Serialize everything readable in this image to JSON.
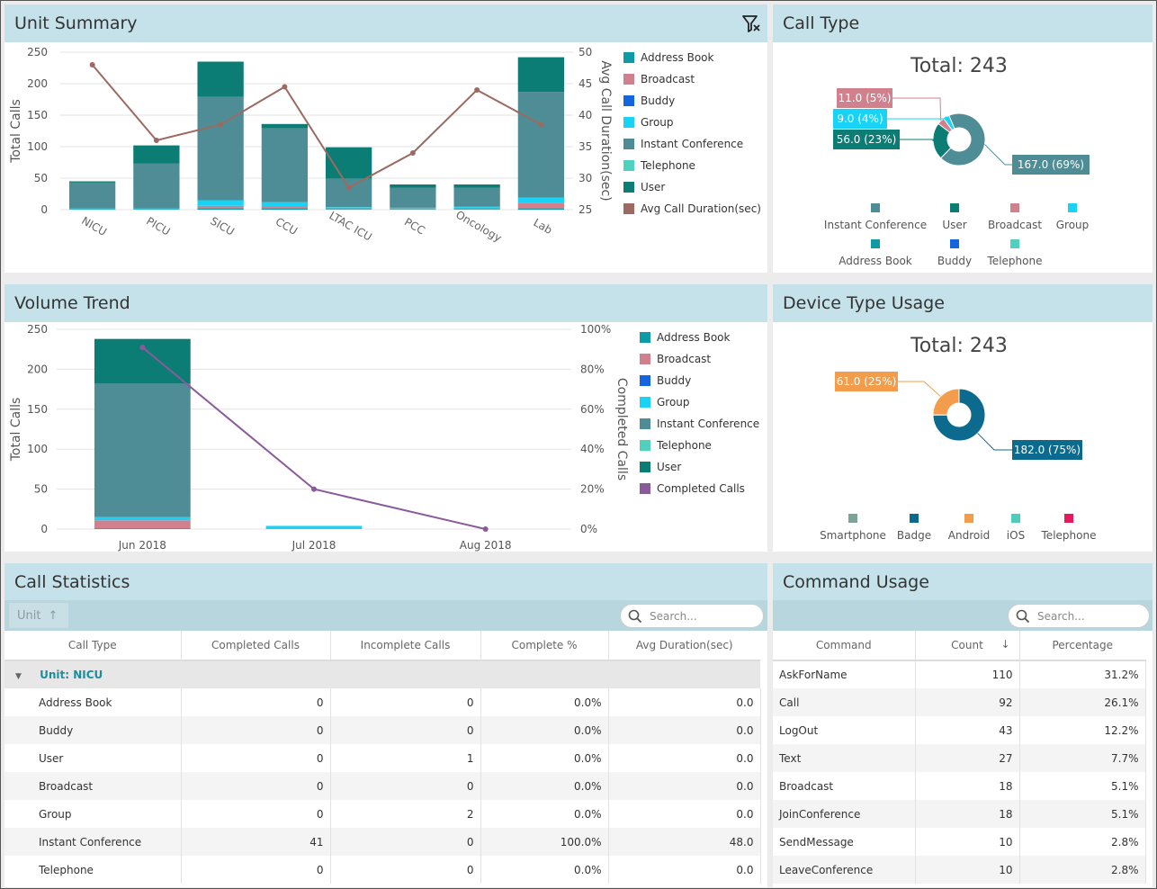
{
  "panels": {
    "unit_summary": "Unit Summary",
    "call_type": "Call Type",
    "volume_trend": "Volume Trend",
    "device_type": "Device Type Usage",
    "call_statistics": "Call Statistics",
    "command_usage": "Command Usage"
  },
  "colors": {
    "address_book": "#0f9aa8",
    "broadcast": "#d1808d",
    "buddy": "#1565e0",
    "group": "#18d3f6",
    "instant_conference": "#4f8d96",
    "telephone": "#4fd1bd",
    "user": "#0c7d75",
    "avg_line": "#9b6a63",
    "completed_line": "#8a5b9a",
    "smartphone": "#7da397",
    "badge": "#0b6a8e",
    "android": "#f39c4b",
    "ios": "#4fcdbb",
    "device_telephone": "#e8195a",
    "header": "#c5e2ea"
  },
  "chart_data": [
    {
      "type": "bar",
      "title": "Unit Summary",
      "ylabel": "Total Calls",
      "y2label": "Avg Call Duration(sec)",
      "ylim": [
        0,
        250
      ],
      "y2lim": [
        25,
        50
      ],
      "yticks": [
        "250",
        "200",
        "150",
        "100",
        "50",
        "0"
      ],
      "y2ticks": [
        "50",
        "45",
        "40",
        "35",
        "30",
        "25"
      ],
      "categories": [
        "NICU",
        "PICU",
        "SICU",
        "CCU",
        "LTAC ICU",
        "PCC",
        "Oncology",
        "Lab"
      ],
      "series": [
        {
          "name": "Address Book",
          "key": "address_book",
          "values": [
            1,
            1,
            2,
            2,
            1,
            1,
            1,
            2
          ]
        },
        {
          "name": "Broadcast",
          "key": "broadcast",
          "values": [
            0,
            0,
            4,
            3,
            2,
            1,
            2,
            9
          ]
        },
        {
          "name": "Buddy",
          "key": "buddy",
          "values": [
            0,
            0,
            0,
            0,
            0,
            0,
            0,
            0
          ]
        },
        {
          "name": "Group",
          "key": "group",
          "values": [
            1,
            1,
            9,
            7,
            1,
            1,
            2,
            8
          ]
        },
        {
          "name": "Instant Conference",
          "key": "instant_conference",
          "values": [
            41,
            71,
            164,
            117,
            45,
            32,
            30,
            168
          ]
        },
        {
          "name": "Telephone",
          "key": "telephone",
          "values": [
            0,
            0,
            0,
            0,
            0,
            0,
            0,
            0
          ]
        },
        {
          "name": "User",
          "key": "user",
          "values": [
            2,
            29,
            56,
            7,
            50,
            5,
            5,
            55
          ]
        }
      ],
      "line": {
        "name": "Avg Call Duration(sec)",
        "key": "avg_line",
        "values": [
          48,
          36,
          38.5,
          44.5,
          28.5,
          34,
          44,
          38.5
        ]
      }
    },
    {
      "type": "pie",
      "title": "Call Type",
      "total_label": "Total: 243",
      "slices": [
        {
          "name": "Instant Conference",
          "key": "instant_conference",
          "value": 167.0,
          "label": "167.0 (69%)"
        },
        {
          "name": "User",
          "key": "user",
          "value": 56.0,
          "label": "56.0 (23%)"
        },
        {
          "name": "Broadcast",
          "key": "broadcast",
          "value": 11.0,
          "label": "11.0 (5%)"
        },
        {
          "name": "Group",
          "key": "group",
          "value": 9.0,
          "label": "9.0 (4%)"
        },
        {
          "name": "Address Book",
          "key": "address_book",
          "value": 0
        },
        {
          "name": "Buddy",
          "key": "buddy",
          "value": 0
        },
        {
          "name": "Telephone",
          "key": "telephone",
          "value": 0
        }
      ]
    },
    {
      "type": "bar",
      "title": "Volume Trend",
      "ylabel": "Total Calls",
      "y2label": "Completed Calls",
      "ylim": [
        0,
        250
      ],
      "y2lim": [
        0,
        100
      ],
      "yticks": [
        "250",
        "200",
        "150",
        "100",
        "50",
        "0"
      ],
      "y2ticks": [
        "100%",
        "80%",
        "60%",
        "40%",
        "20%",
        "0%"
      ],
      "categories": [
        "Jun 2018",
        "Jul 2018",
        "Aug 2018"
      ],
      "series": [
        {
          "name": "Address Book",
          "key": "address_book",
          "values": [
            1,
            0,
            0
          ]
        },
        {
          "name": "Broadcast",
          "key": "broadcast",
          "values": [
            10,
            0,
            0
          ]
        },
        {
          "name": "Buddy",
          "key": "buddy",
          "values": [
            0,
            0,
            0
          ]
        },
        {
          "name": "Group",
          "key": "group",
          "values": [
            4,
            4,
            0
          ]
        },
        {
          "name": "Instant Conference",
          "key": "instant_conference",
          "values": [
            167,
            0,
            0
          ]
        },
        {
          "name": "Telephone",
          "key": "telephone",
          "values": [
            0,
            0,
            0
          ]
        },
        {
          "name": "User",
          "key": "user",
          "values": [
            56,
            0,
            0
          ]
        }
      ],
      "line": {
        "name": "Completed Calls",
        "key": "completed_line",
        "values": [
          91,
          20,
          0
        ]
      }
    },
    {
      "type": "pie",
      "title": "Device Type Usage",
      "total_label": "Total: 243",
      "slices": [
        {
          "name": "Smartphone",
          "key": "smartphone",
          "value": 0
        },
        {
          "name": "Badge",
          "key": "badge",
          "value": 182.0,
          "label": "182.0 (75%)"
        },
        {
          "name": "Android",
          "key": "android",
          "value": 61.0,
          "label": "61.0 (25%)"
        },
        {
          "name": "iOS",
          "key": "ios",
          "value": 0
        },
        {
          "name": "Telephone",
          "key": "device_telephone",
          "value": 0
        }
      ]
    }
  ],
  "call_statistics": {
    "group_chip": "Unit",
    "search_placeholder": "Search...",
    "columns": [
      "Call Type",
      "Completed Calls",
      "Incomplete Calls",
      "Complete %",
      "Avg Duration(sec)"
    ],
    "group_label": "Unit: NICU",
    "rows": [
      [
        "Address Book",
        "0",
        "0",
        "0.0%",
        "0.0"
      ],
      [
        "Buddy",
        "0",
        "0",
        "0.0%",
        "0.0"
      ],
      [
        "User",
        "0",
        "1",
        "0.0%",
        "0.0"
      ],
      [
        "Broadcast",
        "0",
        "0",
        "0.0%",
        "0.0"
      ],
      [
        "Group",
        "0",
        "2",
        "0.0%",
        "0.0"
      ],
      [
        "Instant Conference",
        "41",
        "0",
        "100.0%",
        "48.0"
      ],
      [
        "Telephone",
        "0",
        "0",
        "0.0%",
        "0.0"
      ]
    ]
  },
  "command_usage": {
    "search_placeholder": "Search...",
    "columns": [
      "Command",
      "Count",
      "Percentage"
    ],
    "rows": [
      [
        "AskForName",
        "110",
        "31.2%"
      ],
      [
        "Call",
        "92",
        "26.1%"
      ],
      [
        "LogOut",
        "43",
        "12.2%"
      ],
      [
        "Text",
        "27",
        "7.7%"
      ],
      [
        "Broadcast",
        "18",
        "5.1%"
      ],
      [
        "JoinConference",
        "18",
        "5.1%"
      ],
      [
        "SendMessage",
        "10",
        "2.8%"
      ],
      [
        "LeaveConference",
        "10",
        "2.8%"
      ]
    ]
  }
}
